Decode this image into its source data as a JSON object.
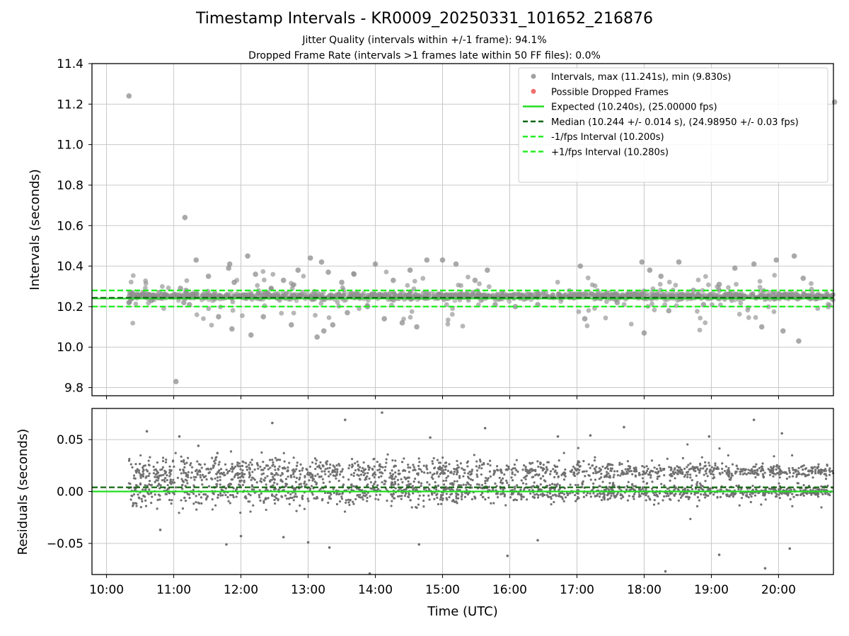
{
  "chart_data": [
    {
      "type": "scatter",
      "title": "Timestamp Intervals - KR0009_20250331_101652_216876",
      "subtitle_lines": [
        "Jitter Quality (intervals within +/-1 frame): 94.1%",
        "Dropped Frame Rate (intervals >1 frames late within 50 FF files): 0.0%"
      ],
      "ylabel": "Intervals (seconds)",
      "ylim": [
        9.76,
        11.4
      ],
      "yticks": [
        9.8,
        10.0,
        10.2,
        10.4,
        10.6,
        10.8,
        11.0,
        11.2,
        11.4
      ],
      "ytick_labels": [
        "9.8",
        "10.0",
        "10.2",
        "10.4",
        "10.6",
        "10.8",
        "11.0",
        "11.2",
        "11.4"
      ],
      "grid": true,
      "legend_position": "top-right",
      "legend": [
        {
          "label": "Intervals, max (11.241s), min (9.830s)",
          "kind": "marker",
          "color": "#a0a0a0"
        },
        {
          "label": "Possible Dropped Frames",
          "kind": "marker",
          "color": "#f07070"
        },
        {
          "label": "Expected (10.240s), (25.00000 fps)",
          "kind": "line",
          "color": "#22dd22"
        },
        {
          "label": "Median (10.244 +/- 0.014 s), (24.98950 +/- 0.03 fps)",
          "kind": "dashed",
          "color": "#116611"
        },
        {
          "label": "-1/fps Interval (10.200s)",
          "kind": "dashed",
          "color": "#22ee22"
        },
        {
          "label": "+1/fps Interval (10.280s)",
          "kind": "dashed",
          "color": "#22ee22"
        }
      ],
      "reference_lines": {
        "expected": 10.24,
        "median": 10.244,
        "minus_1fps": 10.2,
        "plus_1fps": 10.28
      },
      "series": [
        {
          "name": "Intervals",
          "x": [
            "10:21",
            "10:28",
            "10:33",
            "10:40",
            "10:47",
            "10:53",
            "11:06",
            "11:09",
            "11:11",
            "11:14",
            "11:18",
            "11:31",
            "11:40",
            "11:49",
            "11:50",
            "11:52",
            "11:54",
            "12:06",
            "12:09",
            "12:13",
            "12:20",
            "12:27",
            "12:38",
            "12:45",
            "12:51",
            "13:02",
            "13:08",
            "13:12",
            "13:14",
            "13:18",
            "13:22",
            "13:30",
            "13:35",
            "13:41",
            "13:53",
            "14:00",
            "14:08",
            "14:16",
            "14:24",
            "14:31",
            "14:37",
            "14:46",
            "15:00",
            "15:12",
            "15:29",
            "15:40",
            "15:47",
            "15:53",
            "16:05",
            "16:25",
            "16:44",
            "17:03",
            "17:07",
            "17:21",
            "17:36",
            "17:58",
            "18:00",
            "18:05",
            "18:15",
            "18:22",
            "18:31",
            "18:44",
            "18:53",
            "19:07",
            "19:21",
            "19:38",
            "19:45",
            "19:58",
            "20:04",
            "20:14",
            "20:18",
            "20:22",
            "10:20",
            "10:20",
            "11:10",
            "11:02",
            "11:20",
            "20:50"
          ],
          "y": [
            10.27,
            10.25,
            10.26,
            10.23,
            10.27,
            10.25,
            10.29,
            10.22,
            10.28,
            10.21,
            10.26,
            10.35,
            10.15,
            10.39,
            10.41,
            10.09,
            10.32,
            10.45,
            10.06,
            10.36,
            10.15,
            10.29,
            10.33,
            10.11,
            10.38,
            10.44,
            10.05,
            10.42,
            10.08,
            10.37,
            10.11,
            10.32,
            10.17,
            10.36,
            10.2,
            10.41,
            10.14,
            10.33,
            10.12,
            10.38,
            10.1,
            10.43,
            10.43,
            10.41,
            10.33,
            10.38,
            10.21,
            10.27,
            10.2,
            10.21,
            10.26,
            10.4,
            10.14,
            10.24,
            10.22,
            10.42,
            10.07,
            10.38,
            10.35,
            10.18,
            10.42,
            10.28,
            10.21,
            10.31,
            10.39,
            10.41,
            10.1,
            10.43,
            10.08,
            10.45,
            10.03,
            10.34,
            10.22,
            11.24,
            10.64,
            9.83,
            10.43,
            11.21
          ]
        }
      ]
    },
    {
      "type": "scatter",
      "xlabel": "Time (UTC)",
      "ylabel": "Residuals (seconds)",
      "ylim": [
        -0.08,
        0.08
      ],
      "yticks": [
        -0.05,
        0.0,
        0.05
      ],
      "ytick_labels": [
        "−0.05",
        "0.00",
        "0.05"
      ],
      "xlim": [
        "09:47",
        "20:49"
      ],
      "xticks": [
        "10:00",
        "11:00",
        "12:00",
        "13:00",
        "14:00",
        "15:00",
        "16:00",
        "17:00",
        "18:00",
        "19:00",
        "20:00"
      ],
      "xtick_labels": [
        "10:00",
        "11:00",
        "12:00",
        "13:00",
        "14:00",
        "15:00",
        "16:00",
        "17:00",
        "18:00",
        "19:00",
        "20:00"
      ],
      "grid": true,
      "reference_lines": {
        "zero": 0.0,
        "median_offset": 0.004
      },
      "series": [
        {
          "name": "Residuals",
          "bands": [
            0.0,
            0.02
          ],
          "x": [
            "10:36",
            "10:48",
            "11:05",
            "11:22",
            "11:39",
            "11:47",
            "12:00",
            "12:28",
            "12:38",
            "13:00",
            "13:19",
            "13:33",
            "13:55",
            "14:06",
            "14:39",
            "14:49",
            "15:38",
            "15:58",
            "16:25",
            "16:43",
            "17:12",
            "17:42",
            "18:19",
            "18:58",
            "19:07",
            "19:38",
            "19:48",
            "20:03",
            "20:10"
          ],
          "y": [
            0.058,
            -0.037,
            0.053,
            0.044,
            0.037,
            -0.051,
            -0.043,
            0.066,
            -0.044,
            -0.049,
            -0.054,
            0.069,
            -0.079,
            0.076,
            -0.051,
            0.052,
            0.061,
            -0.062,
            -0.047,
            0.053,
            0.054,
            0.062,
            -0.077,
            0.053,
            -0.061,
            0.069,
            -0.074,
            0.056,
            -0.055
          ]
        }
      ]
    }
  ]
}
